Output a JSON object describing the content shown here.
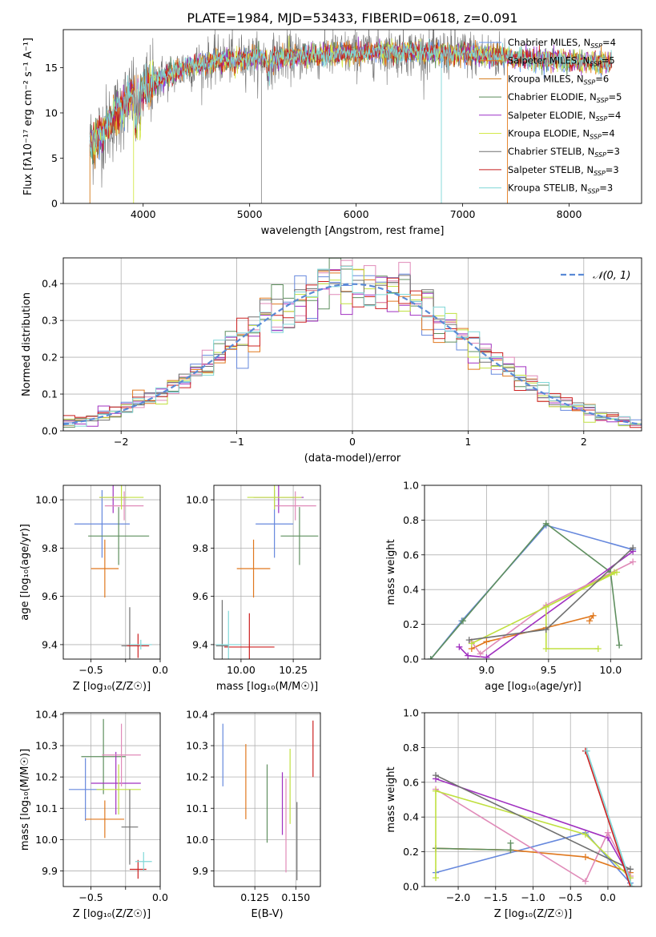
{
  "figure": {
    "title": "PLATE=1984, MJD=53433, FIBERID=0618, z=0.091"
  },
  "colors": {
    "series": [
      "#6495ed",
      "#e47a1c",
      "#d47a18",
      "#5a8a5a",
      "#9b30c8",
      "#d4e84a",
      "#707070",
      "#c81e1e",
      "#7fd6d6"
    ],
    "fit": [
      "#6688dd",
      "#e0781e",
      "#5f8f5f",
      "#a030c0",
      "#e08ab8",
      "#c0e040",
      "#707070",
      "#cc2020",
      "#80d8d8"
    ],
    "normal_curve": "#5a8ad6",
    "grid": "#b0b0b0"
  },
  "chart_data": [
    {
      "id": "spectrum",
      "type": "line",
      "xlabel": "wavelength [Angstrom, rest frame]",
      "ylabel": "Flux [fλ10⁻¹⁷ erg cm⁻² s⁻¹ A⁻¹]",
      "xlim": [
        3250,
        8680
      ],
      "ylim": [
        0,
        19.2
      ],
      "xticks": [
        4000,
        5000,
        6000,
        7000,
        8000
      ],
      "yticks": [
        0,
        5,
        10,
        15
      ],
      "grid": false,
      "legend_position": "top-right",
      "legend": [
        {
          "name": "Chabrier MILES, N",
          "sub": "SSP",
          "suffix": "=4"
        },
        {
          "name": "Salpeter MILES, N",
          "sub": "SSP",
          "suffix": "=5"
        },
        {
          "name": "Kroupa MILES, N",
          "sub": "SSP",
          "suffix": "=6"
        },
        {
          "name": "Chabrier ELODIE, N",
          "sub": "SSP",
          "suffix": "=5"
        },
        {
          "name": "Salpeter ELODIE, N",
          "sub": "SSP",
          "suffix": "=4"
        },
        {
          "name": "Kroupa ELODIE, N",
          "sub": "SSP",
          "suffix": "=4"
        },
        {
          "name": "Chabrier STELIB, N",
          "sub": "SSP",
          "suffix": "=3"
        },
        {
          "name": "Salpeter STELIB, N",
          "sub": "SSP",
          "suffix": "=3"
        },
        {
          "name": "Kroupa STELIB, N",
          "sub": "SSP",
          "suffix": "=3"
        }
      ],
      "continuum": {
        "wavelength": [
          3500,
          3700,
          3900,
          4000,
          4200,
          4400,
          4600,
          4800,
          5000,
          5200,
          5400,
          5600,
          5800,
          6000,
          6200,
          6400,
          6600,
          6800,
          7000,
          7200,
          7400,
          7600,
          7800,
          8000,
          8200,
          8400
        ],
        "flux": [
          6.5,
          9.0,
          12.0,
          12.5,
          14.0,
          15.0,
          15.5,
          16.0,
          16.0,
          16.0,
          16.2,
          16.4,
          16.5,
          16.6,
          16.8,
          16.8,
          16.7,
          16.6,
          16.6,
          16.4,
          16.2,
          16.0,
          15.8,
          15.7,
          15.6,
          15.5
        ]
      }
    },
    {
      "id": "residuals",
      "type": "histogram",
      "xlabel": "(data-model)/error",
      "ylabel": "Normed distribution",
      "xlim": [
        -2.5,
        2.5
      ],
      "ylim": [
        0,
        0.47
      ],
      "xticks": [
        -2,
        -1,
        0,
        1,
        2
      ],
      "yticks": [
        0.0,
        0.1,
        0.2,
        0.3,
        0.4
      ],
      "grid": true,
      "legend_position": "top-right",
      "legend": [
        {
          "name": "𝒩(0, 1)"
        }
      ],
      "bin_width": 0.1
    },
    {
      "id": "age_vs_Z",
      "type": "errorbar",
      "xlabel": "Z [log₁₀(Z/Z☉)]",
      "ylabel": "age  [log₁₀(age/yr)]",
      "xlim": [
        -0.7,
        0.0
      ],
      "ylim": [
        9.34,
        10.06
      ],
      "xticks": [
        -0.5,
        -0.25,
        0.0
      ],
      "xtick_labels": [
        "−0.5",
        "",
        "0.0"
      ],
      "yticks": [
        9.4,
        9.6,
        9.8,
        10.0
      ],
      "grid": true,
      "points": [
        {
          "x": -0.42,
          "xerr": 0.2,
          "y": 9.9,
          "yerr": 0.14
        },
        {
          "x": -0.4,
          "xerr": 0.1,
          "y": 9.715,
          "yerr": 0.12
        },
        {
          "x": -0.3,
          "xerr": 0.22,
          "y": 9.85,
          "yerr": 0.12
        },
        {
          "x": -0.34,
          "xerr": 0.1,
          "y": 10.01,
          "yerr": 0.065
        },
        {
          "x": -0.26,
          "xerr": 0.14,
          "y": 9.975,
          "yerr": 0.06
        },
        {
          "x": -0.28,
          "xerr": 0.16,
          "y": 10.01,
          "yerr": 0.05
        },
        {
          "x": -0.22,
          "xerr": 0.06,
          "y": 9.395,
          "yerr": 0.16
        },
        {
          "x": -0.16,
          "xerr": 0.08,
          "y": 9.395,
          "yerr": 0.05
        },
        {
          "x": -0.14,
          "xerr": 0.08,
          "y": 9.4,
          "yerr": 0.02
        }
      ]
    },
    {
      "id": "age_vs_mass",
      "type": "errorbar",
      "xlabel": "mass [log₁₀(M/M☉)]",
      "ylabel": "",
      "xlim": [
        9.87,
        10.38
      ],
      "ylim": [
        9.34,
        10.06
      ],
      "xticks": [
        10.0,
        10.25
      ],
      "yticks": [
        9.4,
        9.6,
        9.8,
        10.0
      ],
      "grid": true,
      "points": [
        {
          "x": 10.16,
          "xerr": 0.09,
          "y": 9.9,
          "yerr": 0.14
        },
        {
          "x": 10.06,
          "xerr": 0.08,
          "y": 9.715,
          "yerr": 0.12
        },
        {
          "x": 10.28,
          "xerr": 0.09,
          "y": 9.85,
          "yerr": 0.12
        },
        {
          "x": 10.18,
          "xerr": 0.12,
          "y": 10.01,
          "yerr": 0.065
        },
        {
          "x": 10.26,
          "xerr": 0.1,
          "y": 9.975,
          "yerr": 0.06
        },
        {
          "x": 10.16,
          "xerr": 0.13,
          "y": 10.01,
          "yerr": 0.05
        },
        {
          "x": 9.91,
          "xerr": 0.03,
          "y": 9.395,
          "yerr": 0.19
        },
        {
          "x": 10.04,
          "xerr": 0.12,
          "y": 9.39,
          "yerr": 0.14
        },
        {
          "x": 9.94,
          "xerr": 0.06,
          "y": 9.4,
          "yerr": 0.14
        }
      ]
    },
    {
      "id": "weight_vs_age",
      "type": "line",
      "xlabel": "age  [log₁₀(age/yr)]",
      "ylabel": "mass weight",
      "xlim": [
        8.5,
        10.25
      ],
      "ylim": [
        0.0,
        1.0
      ],
      "xticks": [
        9.0,
        9.5,
        10.0
      ],
      "yticks": [
        0.0,
        0.2,
        0.4,
        0.6,
        0.8,
        1.0
      ],
      "grid": true,
      "series": [
        {
          "x": [
            8.55,
            8.8,
            9.48,
            10.18
          ],
          "y": [
            0.0,
            0.22,
            0.77,
            0.63
          ]
        },
        {
          "x": [
            8.88,
            9.0,
            9.48,
            9.86,
            9.83
          ],
          "y": [
            0.06,
            0.1,
            0.18,
            0.25,
            0.22
          ]
        },
        {
          "x": [
            8.55,
            8.81,
            9.48,
            10.0,
            10.07
          ],
          "y": [
            0.0,
            0.22,
            0.78,
            0.5,
            0.08
          ]
        },
        {
          "x": [
            8.78,
            8.85,
            9.0,
            10.18
          ],
          "y": [
            0.07,
            0.02,
            0.01,
            0.62
          ]
        },
        {
          "x": [
            8.88,
            8.95,
            9.48,
            10.18
          ],
          "y": [
            0.1,
            0.03,
            0.31,
            0.56
          ]
        },
        {
          "x": [
            8.88,
            9.48,
            10.03,
            10.05,
            9.48,
            9.48,
            9.9
          ],
          "y": [
            0.09,
            0.3,
            0.5,
            0.5,
            0.3,
            0.06,
            0.06
          ]
        },
        {
          "x": [
            8.86,
            9.48,
            10.18
          ],
          "y": [
            0.11,
            0.17,
            0.64
          ]
        }
      ]
    },
    {
      "id": "mass_vs_Z",
      "type": "errorbar",
      "xlabel": "Z [log₁₀(Z/Z☉)]",
      "ylabel": "mass [log₁₀(M/M☉)]",
      "xlim": [
        -0.7,
        0.0
      ],
      "ylim": [
        9.85,
        10.405
      ],
      "xticks": [
        -0.5,
        -0.25,
        0.0
      ],
      "xtick_labels": [
        "−0.5",
        "",
        "0.0"
      ],
      "yticks": [
        9.9,
        10.0,
        10.1,
        10.2,
        10.3,
        10.4
      ],
      "grid": true,
      "points": [
        {
          "x": -0.54,
          "xerr": 0.12,
          "y": 10.16,
          "yerr": 0.1
        },
        {
          "x": -0.4,
          "xerr": 0.14,
          "y": 10.065,
          "yerr": 0.06
        },
        {
          "x": -0.41,
          "xerr": 0.16,
          "y": 10.265,
          "yerr": 0.12
        },
        {
          "x": -0.32,
          "xerr": 0.18,
          "y": 10.18,
          "yerr": 0.1
        },
        {
          "x": -0.28,
          "xerr": 0.14,
          "y": 10.27,
          "yerr": 0.1
        },
        {
          "x": -0.3,
          "xerr": 0.16,
          "y": 10.16,
          "yerr": 0.08
        },
        {
          "x": -0.22,
          "xerr": 0.06,
          "y": 10.04,
          "yerr": 0.12
        },
        {
          "x": -0.16,
          "xerr": 0.06,
          "y": 9.905,
          "yerr": 0.03
        },
        {
          "x": -0.12,
          "xerr": 0.06,
          "y": 9.93,
          "yerr": 0.03
        }
      ]
    },
    {
      "id": "mass_vs_ebv",
      "type": "errorbar",
      "xlabel": "E(B-V)",
      "ylabel": "",
      "xlim": [
        0.1,
        0.165
      ],
      "ylim": [
        9.85,
        10.405
      ],
      "xticks": [
        0.125,
        0.15
      ],
      "yticks": [
        9.9,
        10.0,
        10.1,
        10.2,
        10.3,
        10.4
      ],
      "grid": true,
      "points": [
        {
          "x": 0.1055,
          "xerr": 0,
          "y": 10.27,
          "yerr": 0.1
        },
        {
          "x": 0.1195,
          "xerr": 0,
          "y": 10.185,
          "yerr": 0.12
        },
        {
          "x": 0.1325,
          "xerr": 0,
          "y": 10.115,
          "yerr": 0.125
        },
        {
          "x": 0.1418,
          "xerr": 0,
          "y": 10.115,
          "yerr": 0.1
        },
        {
          "x": 0.144,
          "xerr": 0,
          "y": 10.045,
          "yerr": 0.15
        },
        {
          "x": 0.1465,
          "xerr": 0,
          "y": 10.17,
          "yerr": 0.12
        },
        {
          "x": 0.1507,
          "xerr": 0,
          "y": 9.995,
          "yerr": 0.125
        },
        {
          "x": 0.1605,
          "xerr": 0,
          "y": 10.29,
          "yerr": 0.09
        }
      ]
    },
    {
      "id": "weight_vs_Z",
      "type": "line",
      "xlabel": "Z [log₁₀(Z/Z☉)]",
      "ylabel": "mass weight",
      "xlim": [
        -2.45,
        0.45
      ],
      "ylim": [
        0.0,
        1.0
      ],
      "xticks": [
        -2.0,
        -1.5,
        -1.0,
        -0.5,
        0.0
      ],
      "yticks": [
        0.0,
        0.2,
        0.4,
        0.6,
        0.8,
        1.0
      ],
      "grid": true,
      "series": [
        {
          "x": [
            -2.3,
            -0.3,
            0.3
          ],
          "y": [
            0.08,
            0.31,
            0.02
          ]
        },
        {
          "x": [
            -2.3,
            -1.3,
            -0.3,
            0.3
          ],
          "y": [
            0.22,
            0.21,
            0.17,
            0.08
          ]
        },
        {
          "x": [
            -2.3,
            -1.3,
            -1.3
          ],
          "y": [
            0.22,
            0.21,
            0.25
          ]
        },
        {
          "x": [
            -2.3,
            -0.0,
            0.3
          ],
          "y": [
            0.62,
            0.28,
            0.05
          ]
        },
        {
          "x": [
            -2.3,
            -0.3,
            0.0,
            0.3
          ],
          "y": [
            0.56,
            0.03,
            0.31,
            0.06
          ]
        },
        {
          "x": [
            -2.3,
            -2.3,
            -0.3,
            0.3
          ],
          "y": [
            0.05,
            0.55,
            0.3,
            0.05
          ]
        },
        {
          "x": [
            -2.3,
            0.3
          ],
          "y": [
            0.64,
            0.1
          ]
        },
        {
          "x": [
            -0.3,
            0.3
          ],
          "y": [
            0.78,
            0.0
          ]
        },
        {
          "x": [
            -0.28,
            0.32
          ],
          "y": [
            0.78,
            0.0
          ]
        }
      ]
    }
  ]
}
